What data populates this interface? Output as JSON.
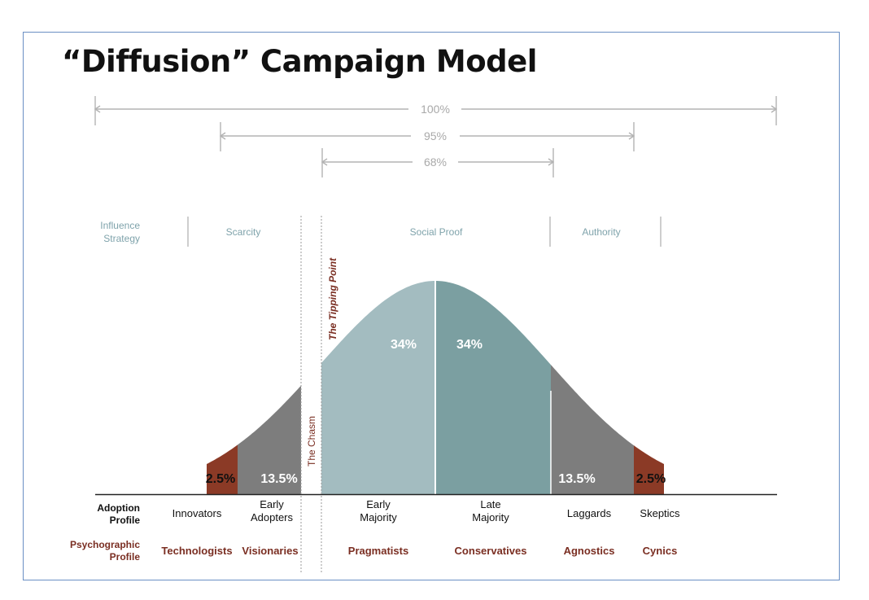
{
  "title": "“Diffusion” Campaign Model",
  "ranges": [
    {
      "label": "100%"
    },
    {
      "label": "95%"
    },
    {
      "label": "68%"
    }
  ],
  "influence": {
    "row_label_line1": "Influence",
    "row_label_line2": "Strategy",
    "strategies": [
      "Scarcity",
      "Social Proof",
      "Authority"
    ]
  },
  "markers": {
    "tipping_point": "The Tipping Point",
    "chasm": "The Chasm"
  },
  "segments": {
    "pct_labels": [
      "2.5%",
      "13.5%",
      "34%",
      "34%",
      "13.5%",
      "2.5%"
    ]
  },
  "adoption": {
    "row_label_line1": "Adoption",
    "row_label_line2": "Profile",
    "items": [
      {
        "line1": "Innovators",
        "line2": ""
      },
      {
        "line1": "Early",
        "line2": "Adopters"
      },
      {
        "line1": "Early",
        "line2": "Majority"
      },
      {
        "line1": "Late",
        "line2": "Majority"
      },
      {
        "line1": "Laggards",
        "line2": ""
      },
      {
        "line1": "Skeptics",
        "line2": ""
      }
    ]
  },
  "psychographic": {
    "row_label_line1": "Psychographic",
    "row_label_line2": "Profile",
    "items": [
      "Technologists",
      "Visionaries",
      "Pragmatists",
      "Conservatives",
      "Agnostics",
      "Cynics"
    ]
  },
  "colors": {
    "frame": "#6a8fc4",
    "gray_text": "#a9a9a9",
    "teal_text": "#7fa3ab",
    "maroon": "#7a2e22",
    "tail": "#8b3a26",
    "dark_gray": "#7d7d7d",
    "light_teal": "#a3bcc0",
    "dark_teal": "#7b9fa1"
  }
}
